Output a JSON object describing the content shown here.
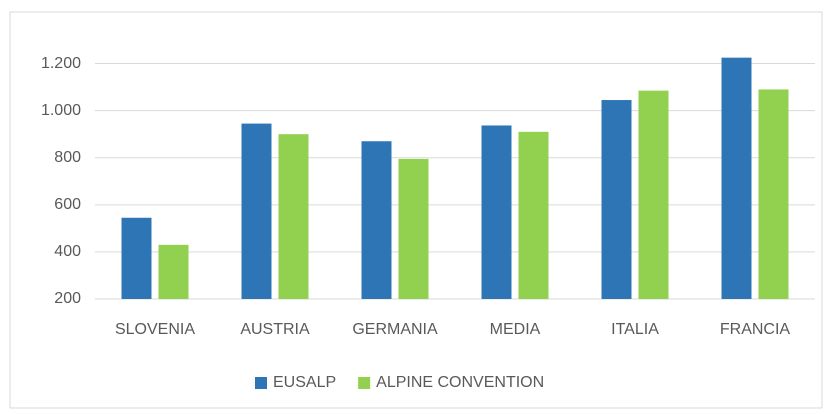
{
  "chart_data": {
    "type": "bar",
    "categories": [
      "SLOVENIA",
      "AUSTRIA",
      "GERMANIA",
      "MEDIA",
      "ITALIA",
      "FRANCIA"
    ],
    "series": [
      {
        "name": "EUSALP",
        "color": "#2e75b6",
        "values": [
          545,
          945,
          870,
          937,
          1045,
          1225
        ]
      },
      {
        "name": "ALPINE CONVENTION",
        "color": "#92d050",
        "values": [
          430,
          900,
          795,
          910,
          1085,
          1090
        ]
      }
    ],
    "ylim": [
      200,
      1300
    ],
    "yticks": [
      200,
      400,
      600,
      800,
      {
        "value": 1000,
        "label": "1.000"
      },
      {
        "value": 1200,
        "label": "1.200"
      }
    ],
    "grid": true,
    "legend": "bottom"
  }
}
